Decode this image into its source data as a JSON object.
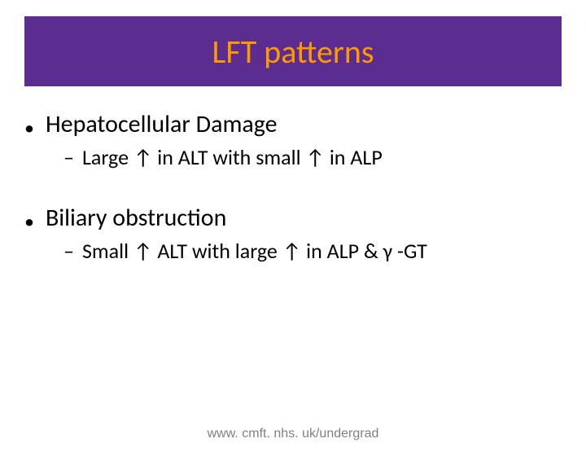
{
  "title": "LFT patterns",
  "colors": {
    "title_bg": "#5c2d91",
    "title_text": "#ff9900",
    "body_text": "#000000",
    "footer_text": "#808080",
    "page_bg": "#ffffff"
  },
  "typography": {
    "title_fontsize": 40,
    "l1_fontsize": 30,
    "l2_fontsize": 26,
    "footer_fontsize": 16
  },
  "bullets": [
    {
      "text": "Hepatocellular Damage",
      "sub": [
        "Large ↑ in ALT with small ↑ in ALP"
      ]
    },
    {
      "text": "Biliary obstruction",
      "sub": [
        "Small ↑ ALT with large ↑ in ALP & γ -GT"
      ]
    }
  ],
  "footer": "www. cmft. nhs. uk/undergrad"
}
